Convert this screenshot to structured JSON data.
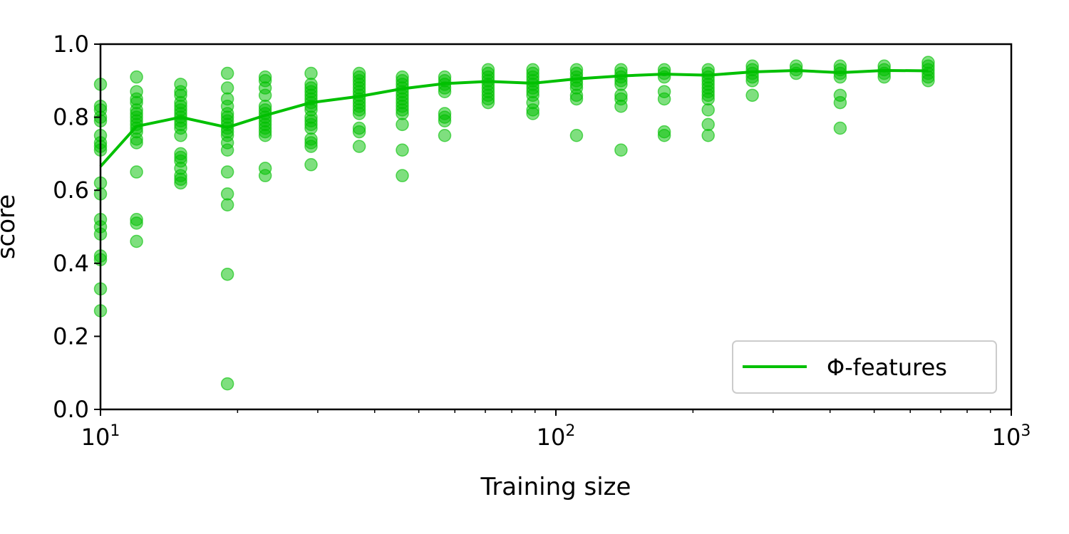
{
  "chart_data": {
    "type": "scatter",
    "xlabel": "Training size",
    "ylabel": "score",
    "x_scale": "log",
    "xlim": [
      10,
      1000
    ],
    "ylim": [
      0.0,
      1.0
    ],
    "x_tick_labels": [
      {
        "value": 10,
        "base": "10",
        "exp": "1"
      },
      {
        "value": 100,
        "base": "10",
        "exp": "2"
      },
      {
        "value": 1000,
        "base": "10",
        "exp": "3"
      }
    ],
    "y_ticks": [
      "0.0",
      "0.2",
      "0.4",
      "0.6",
      "0.8",
      "1.0"
    ],
    "grid": false,
    "legend_position": "bottom-right",
    "color": "#00c000",
    "series": [
      {
        "name": "Φ-features",
        "type": "line",
        "x": [
          10,
          12,
          15,
          19,
          23,
          29,
          37,
          46,
          57,
          71,
          89,
          111,
          139,
          173,
          216,
          270,
          337,
          421,
          526,
          657
        ],
        "y": [
          0.665,
          0.775,
          0.8,
          0.772,
          0.805,
          0.84,
          0.857,
          0.878,
          0.892,
          0.898,
          0.893,
          0.905,
          0.913,
          0.918,
          0.915,
          0.924,
          0.928,
          0.922,
          0.928,
          0.927
        ]
      },
      {
        "type": "scatter",
        "points": [
          {
            "x": 10,
            "y": [
              0.89,
              0.83,
              0.82,
              0.8,
              0.79,
              0.75,
              0.73,
              0.72,
              0.71,
              0.62,
              0.59,
              0.52,
              0.5,
              0.48,
              0.42,
              0.41,
              0.33,
              0.27
            ]
          },
          {
            "x": 12,
            "y": [
              0.91,
              0.87,
              0.85,
              0.84,
              0.82,
              0.81,
              0.8,
              0.79,
              0.78,
              0.77,
              0.76,
              0.74,
              0.73,
              0.65,
              0.52,
              0.51,
              0.46
            ]
          },
          {
            "x": 15,
            "y": [
              0.89,
              0.87,
              0.86,
              0.84,
              0.83,
              0.82,
              0.81,
              0.8,
              0.79,
              0.78,
              0.77,
              0.75,
              0.7,
              0.69,
              0.68,
              0.66,
              0.64,
              0.63,
              0.62
            ]
          },
          {
            "x": 19,
            "y": [
              0.92,
              0.88,
              0.85,
              0.83,
              0.81,
              0.8,
              0.79,
              0.78,
              0.77,
              0.76,
              0.75,
              0.73,
              0.71,
              0.65,
              0.59,
              0.56,
              0.37,
              0.07
            ]
          },
          {
            "x": 23,
            "y": [
              0.91,
              0.9,
              0.88,
              0.86,
              0.83,
              0.82,
              0.81,
              0.8,
              0.79,
              0.78,
              0.77,
              0.76,
              0.75,
              0.66,
              0.64
            ]
          },
          {
            "x": 29,
            "y": [
              0.92,
              0.89,
              0.88,
              0.87,
              0.86,
              0.85,
              0.84,
              0.83,
              0.82,
              0.8,
              0.79,
              0.78,
              0.77,
              0.74,
              0.73,
              0.72,
              0.67
            ]
          },
          {
            "x": 37,
            "y": [
              0.92,
              0.91,
              0.9,
              0.89,
              0.88,
              0.87,
              0.86,
              0.85,
              0.84,
              0.83,
              0.82,
              0.81,
              0.77,
              0.76,
              0.72
            ]
          },
          {
            "x": 46,
            "y": [
              0.91,
              0.9,
              0.89,
              0.88,
              0.87,
              0.86,
              0.85,
              0.84,
              0.83,
              0.82,
              0.81,
              0.78,
              0.71,
              0.64
            ]
          },
          {
            "x": 57,
            "y": [
              0.91,
              0.9,
              0.89,
              0.88,
              0.87,
              0.81,
              0.8,
              0.79,
              0.75
            ]
          },
          {
            "x": 71,
            "y": [
              0.93,
              0.92,
              0.91,
              0.9,
              0.89,
              0.88,
              0.87,
              0.86,
              0.85,
              0.84
            ]
          },
          {
            "x": 89,
            "y": [
              0.93,
              0.92,
              0.91,
              0.9,
              0.89,
              0.88,
              0.87,
              0.86,
              0.84,
              0.82,
              0.81
            ]
          },
          {
            "x": 111,
            "y": [
              0.93,
              0.92,
              0.91,
              0.9,
              0.89,
              0.88,
              0.86,
              0.85,
              0.75
            ]
          },
          {
            "x": 139,
            "y": [
              0.93,
              0.92,
              0.91,
              0.9,
              0.89,
              0.86,
              0.85,
              0.83,
              0.71
            ]
          },
          {
            "x": 173,
            "y": [
              0.93,
              0.92,
              0.91,
              0.87,
              0.85,
              0.76,
              0.75
            ]
          },
          {
            "x": 216,
            "y": [
              0.93,
              0.92,
              0.91,
              0.9,
              0.89,
              0.88,
              0.87,
              0.86,
              0.85,
              0.82,
              0.78,
              0.75
            ]
          },
          {
            "x": 270,
            "y": [
              0.94,
              0.93,
              0.92,
              0.91,
              0.9,
              0.86
            ]
          },
          {
            "x": 337,
            "y": [
              0.94,
              0.93,
              0.92
            ]
          },
          {
            "x": 421,
            "y": [
              0.94,
              0.93,
              0.92,
              0.91,
              0.86,
              0.84,
              0.77
            ]
          },
          {
            "x": 526,
            "y": [
              0.94,
              0.93,
              0.92,
              0.91
            ]
          },
          {
            "x": 657,
            "y": [
              0.95,
              0.94,
              0.93,
              0.92,
              0.91,
              0.9
            ]
          }
        ]
      }
    ]
  }
}
